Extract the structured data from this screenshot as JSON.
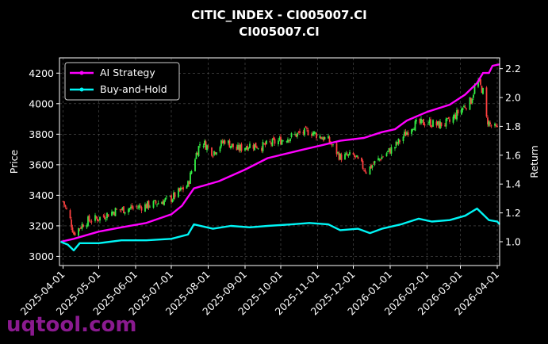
{
  "chart_data": {
    "type": "line",
    "title": "CITIC_INDEX - CI005007.CI",
    "subtitle": "CI005007.CI",
    "ylabel_left": "Price",
    "ylabel_right": "Return",
    "ylim_left": [
      2940,
      4300
    ],
    "ylim_right": [
      0.835,
      2.275
    ],
    "x_range": [
      "2025-03-29",
      "2026-04-03"
    ],
    "yticks_left": [
      3000,
      3200,
      3400,
      3600,
      3800,
      4000,
      4200
    ],
    "yticks_right": [
      1.0,
      1.2,
      1.4,
      1.6,
      1.8,
      2.0,
      2.2
    ],
    "xticks": [
      "2025-04-01",
      "2025-05-01",
      "2025-06-01",
      "2025-07-01",
      "2025-08-01",
      "2025-09-01",
      "2025-10-01",
      "2025-11-01",
      "2025-12-01",
      "2026-01-01",
      "2026-02-01",
      "2026-03-01",
      "2026-04-01"
    ],
    "grid": true,
    "legend_position": "top-left",
    "colors": {
      "up": "#33ee44",
      "down": "#ff4040",
      "strategy": "#ff00ff",
      "buyhold": "#00f5f5",
      "grid": "#555555",
      "background": "#000000"
    },
    "price_series": {
      "name": "",
      "type": "candlestick",
      "anchors": [
        [
          "2025-04-01",
          3360
        ],
        [
          "2025-04-07",
          3240
        ],
        [
          "2025-04-10",
          3150
        ],
        [
          "2025-04-20",
          3230
        ],
        [
          "2025-05-01",
          3250
        ],
        [
          "2025-05-15",
          3300
        ],
        [
          "2025-06-01",
          3320
        ],
        [
          "2025-06-15",
          3340
        ],
        [
          "2025-07-01",
          3380
        ],
        [
          "2025-07-15",
          3470
        ],
        [
          "2025-07-21",
          3650
        ],
        [
          "2025-07-26",
          3760
        ],
        [
          "2025-08-05",
          3680
        ],
        [
          "2025-08-15",
          3760
        ],
        [
          "2025-08-25",
          3700
        ],
        [
          "2025-09-05",
          3730
        ],
        [
          "2025-09-15",
          3720
        ],
        [
          "2025-10-01",
          3760
        ],
        [
          "2025-10-15",
          3800
        ],
        [
          "2025-10-25",
          3820
        ],
        [
          "2025-11-10",
          3760
        ],
        [
          "2025-11-20",
          3650
        ],
        [
          "2025-12-01",
          3660
        ],
        [
          "2025-12-12",
          3560
        ],
        [
          "2025-12-20",
          3620
        ],
        [
          "2026-01-05",
          3720
        ],
        [
          "2026-01-20",
          3860
        ],
        [
          "2026-02-01",
          3880
        ],
        [
          "2026-02-10",
          3860
        ],
        [
          "2026-02-20",
          3880
        ],
        [
          "2026-03-01",
          3960
        ],
        [
          "2026-03-10",
          4020
        ],
        [
          "2026-03-15",
          4160
        ],
        [
          "2026-03-20",
          4080
        ],
        [
          "2026-03-23",
          3900
        ],
        [
          "2026-03-26",
          3860
        ],
        [
          "2026-04-01",
          3830
        ]
      ]
    },
    "series": [
      {
        "name": "AI Strategy",
        "axis": "right",
        "points": [
          [
            "2025-03-30",
            1.0
          ],
          [
            "2025-04-10",
            1.02
          ],
          [
            "2025-05-01",
            1.07
          ],
          [
            "2025-05-20",
            1.1
          ],
          [
            "2025-06-10",
            1.13
          ],
          [
            "2025-07-01",
            1.19
          ],
          [
            "2025-07-10",
            1.25
          ],
          [
            "2025-07-20",
            1.37
          ],
          [
            "2025-08-10",
            1.42
          ],
          [
            "2025-09-01",
            1.5
          ],
          [
            "2025-09-20",
            1.58
          ],
          [
            "2025-10-15",
            1.63
          ],
          [
            "2025-11-05",
            1.67
          ],
          [
            "2025-11-20",
            1.7
          ],
          [
            "2025-12-10",
            1.72
          ],
          [
            "2025-12-25",
            1.76
          ],
          [
            "2026-01-05",
            1.78
          ],
          [
            "2026-01-15",
            1.84
          ],
          [
            "2026-02-01",
            1.9
          ],
          [
            "2026-02-20",
            1.95
          ],
          [
            "2026-03-05",
            2.02
          ],
          [
            "2026-03-15",
            2.1
          ],
          [
            "2026-03-20",
            2.17
          ],
          [
            "2026-03-25",
            2.17
          ],
          [
            "2026-03-28",
            2.22
          ],
          [
            "2026-04-03",
            2.23
          ]
        ]
      },
      {
        "name": "Buy-and-Hold",
        "axis": "right",
        "points": [
          [
            "2025-03-30",
            1.0
          ],
          [
            "2025-04-05",
            0.98
          ],
          [
            "2025-04-10",
            0.94
          ],
          [
            "2025-04-15",
            0.99
          ],
          [
            "2025-05-01",
            0.99
          ],
          [
            "2025-05-20",
            1.01
          ],
          [
            "2025-06-10",
            1.01
          ],
          [
            "2025-07-01",
            1.02
          ],
          [
            "2025-07-15",
            1.05
          ],
          [
            "2025-07-20",
            1.12
          ],
          [
            "2025-08-05",
            1.09
          ],
          [
            "2025-08-20",
            1.11
          ],
          [
            "2025-09-05",
            1.1
          ],
          [
            "2025-09-20",
            1.11
          ],
          [
            "2025-10-10",
            1.12
          ],
          [
            "2025-10-25",
            1.13
          ],
          [
            "2025-11-10",
            1.12
          ],
          [
            "2025-11-20",
            1.08
          ],
          [
            "2025-12-05",
            1.09
          ],
          [
            "2025-12-15",
            1.06
          ],
          [
            "2025-12-25",
            1.09
          ],
          [
            "2026-01-10",
            1.12
          ],
          [
            "2026-01-25",
            1.16
          ],
          [
            "2026-02-05",
            1.14
          ],
          [
            "2026-02-20",
            1.15
          ],
          [
            "2026-03-05",
            1.18
          ],
          [
            "2026-03-15",
            1.23
          ],
          [
            "2026-03-20",
            1.19
          ],
          [
            "2026-03-25",
            1.15
          ],
          [
            "2026-04-01",
            1.14
          ],
          [
            "2026-04-03",
            1.12
          ]
        ]
      }
    ]
  },
  "watermark": "uqtool.com"
}
